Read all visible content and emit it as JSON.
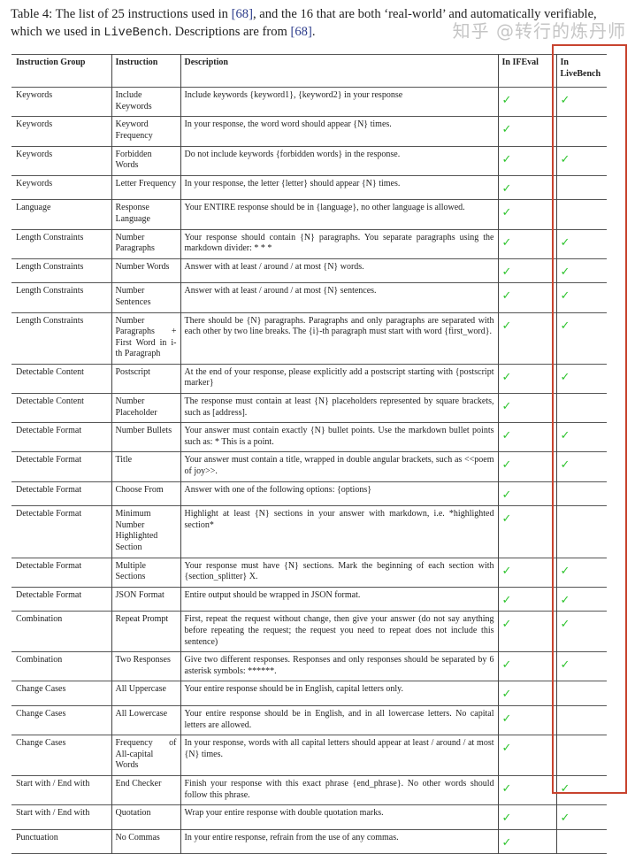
{
  "caption": {
    "prefix": "Table 4:  The list of 25 instructions used in ",
    "ref1": "[68]",
    "middle": ", and the 16 that are both ‘real-world’ and automatically verifiable, which we used in ",
    "livebench": "LiveBench",
    "middle2": ". Descriptions are from ",
    "ref2": "[68]",
    "suffix": "."
  },
  "headers": [
    "Instruction Group",
    "Instruction",
    "Description",
    "In IFEval",
    "In LiveBench"
  ],
  "check_glyph": "✓",
  "colors": {
    "check": "#2ec42e",
    "highlight_box": "#c8432f"
  },
  "rows": [
    {
      "group": "Keywords",
      "instruction": "Include Keywords",
      "description": "Include keywords {keyword1}, {keyword2} in your response",
      "ifeval": true,
      "livebench": true
    },
    {
      "group": "Keywords",
      "instruction": "Keyword Frequency",
      "description": "In your response, the word word should appear {N} times.",
      "ifeval": true,
      "livebench": false
    },
    {
      "group": "Keywords",
      "instruction": "Forbidden Words",
      "description": "Do not include keywords {forbidden words} in the response.",
      "ifeval": true,
      "livebench": true
    },
    {
      "group": "Keywords",
      "instruction": "Letter Frequency",
      "description": "In your response, the letter {letter} should appear {N} times.",
      "ifeval": true,
      "livebench": false
    },
    {
      "group": "Language",
      "instruction": "Response Language",
      "description": "Your ENTIRE response should be in {language}, no other language is allowed.",
      "ifeval": true,
      "livebench": false
    },
    {
      "group": "Length Constraints",
      "instruction": "Number Paragraphs",
      "description": "Your response should contain {N} paragraphs. You separate paragraphs using the markdown divider: * * *",
      "ifeval": true,
      "livebench": true
    },
    {
      "group": "Length Constraints",
      "instruction": "Number Words",
      "description": "Answer with at least / around / at most {N} words.",
      "ifeval": true,
      "livebench": true
    },
    {
      "group": "Length Constraints",
      "instruction": "Number Sentences",
      "description": "Answer with at least / around / at most {N} sentences.",
      "ifeval": true,
      "livebench": true
    },
    {
      "group": "Length Constraints",
      "instruction": "Number Paragraphs + First Word in i-th Paragraph",
      "description": "There should be {N} paragraphs. Paragraphs and only paragraphs are separated with each other by two line breaks. The {i}-th paragraph must start with word {first_word}.",
      "ifeval": true,
      "livebench": true
    },
    {
      "group": "Detectable Content",
      "instruction": "Postscript",
      "description": "At the end of your response, please explicitly add a postscript starting with {postscript marker}",
      "ifeval": true,
      "livebench": true
    },
    {
      "group": "Detectable Content",
      "instruction": "Number Placeholder",
      "description": "The response must contain at least {N} placeholders represented by square brackets, such as [address].",
      "ifeval": true,
      "livebench": false
    },
    {
      "group": "Detectable Format",
      "instruction": "Number Bullets",
      "description": "Your answer must contain exactly {N} bullet points. Use the markdown bullet points such as: * This is a point.",
      "ifeval": true,
      "livebench": true
    },
    {
      "group": "Detectable Format",
      "instruction": "Title",
      "description": "Your answer must contain a title, wrapped in double angular brackets, such as <<poem of joy>>.",
      "ifeval": true,
      "livebench": true
    },
    {
      "group": "Detectable Format",
      "instruction": "Choose From",
      "description": "Answer with one of the following options: {options}",
      "ifeval": true,
      "livebench": false
    },
    {
      "group": "Detectable Format",
      "instruction": "Minimum Number Highlighted Section",
      "description": "Highlight at least {N} sections in your answer with markdown, i.e. *highlighted section*",
      "ifeval": true,
      "livebench": false
    },
    {
      "group": "Detectable Format",
      "instruction": "Multiple Sections",
      "description": "Your response must have {N} sections. Mark the beginning of each section with {section_splitter} X.",
      "ifeval": true,
      "livebench": true
    },
    {
      "group": "Detectable Format",
      "instruction": "JSON Format",
      "description": "Entire output should be wrapped in JSON format.",
      "ifeval": true,
      "livebench": true
    },
    {
      "group": "Combination",
      "instruction": "Repeat Prompt",
      "description": "First, repeat the request without change, then give your answer (do not say anything before repeating the request; the request you need to repeat does not include this sentence)",
      "ifeval": true,
      "livebench": true
    },
    {
      "group": "Combination",
      "instruction": "Two Responses",
      "description": "Give two different responses. Responses and only responses should be separated by 6 asterisk symbols: ******.",
      "ifeval": true,
      "livebench": true
    },
    {
      "group": "Change Cases",
      "instruction": "All Uppercase",
      "description": "Your entire response should be in English, capital letters only.",
      "ifeval": true,
      "livebench": false
    },
    {
      "group": "Change Cases",
      "instruction": "All Lowercase",
      "description": "Your entire response should be in English, and in all lowercase letters. No capital letters are allowed.",
      "ifeval": true,
      "livebench": false
    },
    {
      "group": "Change Cases",
      "instruction": "Frequency of All-capital Words",
      "description": "In your response, words with all capital letters should appear at least / around / at most {N} times.",
      "ifeval": true,
      "livebench": false
    },
    {
      "group": "Start with / End with",
      "instruction": "End Checker",
      "description": "Finish your response with this exact phrase {end_phrase}. No other words should follow this phrase.",
      "ifeval": true,
      "livebench": true
    },
    {
      "group": "Start with / End with",
      "instruction": "Quotation",
      "description": "Wrap your entire response with double quotation marks.",
      "ifeval": true,
      "livebench": true
    },
    {
      "group": "Punctuation",
      "instruction": "No Commas",
      "description": "In your entire response, refrain from the use of any commas.",
      "ifeval": true,
      "livebench": false
    }
  ],
  "watermark": "知乎 @转行的炼丹师"
}
